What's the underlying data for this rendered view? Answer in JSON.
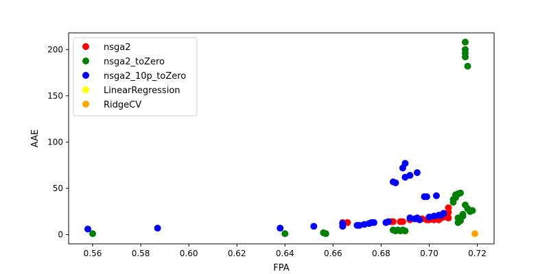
{
  "chart_data": {
    "type": "scatter",
    "xlabel": "FPA",
    "ylabel": "AAE",
    "xlim": [
      0.55,
      0.727
    ],
    "ylim": [
      -10,
      218
    ],
    "x_ticks": [
      "0.56",
      "0.58",
      "0.60",
      "0.62",
      "0.64",
      "0.66",
      "0.68",
      "0.70",
      "0.72"
    ],
    "y_ticks": [
      "0",
      "50",
      "100",
      "150",
      "200"
    ],
    "legend_position": "top-left",
    "grid": false,
    "series": [
      {
        "name": "nsga2",
        "color": "#ff0000",
        "points": [
          [
            0.664,
            13
          ],
          [
            0.666,
            13
          ],
          [
            0.684,
            14
          ],
          [
            0.685,
            14
          ],
          [
            0.688,
            14
          ],
          [
            0.689,
            14
          ],
          [
            0.692,
            16
          ],
          [
            0.695,
            17
          ],
          [
            0.697,
            17
          ],
          [
            0.699,
            16
          ],
          [
            0.7,
            16
          ],
          [
            0.702,
            16
          ],
          [
            0.703,
            17
          ],
          [
            0.704,
            16
          ],
          [
            0.705,
            18
          ],
          [
            0.706,
            19
          ],
          [
            0.707,
            20
          ],
          [
            0.708,
            24
          ],
          [
            0.708,
            18
          ],
          [
            0.708,
            29
          ]
        ]
      },
      {
        "name": "nsga2_toZero",
        "color": "#008000",
        "points": [
          [
            0.56,
            1
          ],
          [
            0.64,
            1
          ],
          [
            0.656,
            2
          ],
          [
            0.657,
            1
          ],
          [
            0.685,
            5
          ],
          [
            0.686,
            4
          ],
          [
            0.687,
            5
          ],
          [
            0.688,
            4
          ],
          [
            0.689,
            5
          ],
          [
            0.69,
            4
          ],
          [
            0.71,
            35
          ],
          [
            0.71,
            38
          ],
          [
            0.711,
            40
          ],
          [
            0.711,
            43
          ],
          [
            0.712,
            44
          ],
          [
            0.712,
            13
          ],
          [
            0.712,
            18
          ],
          [
            0.713,
            15
          ],
          [
            0.713,
            45
          ],
          [
            0.714,
            20
          ],
          [
            0.714,
            22
          ],
          [
            0.715,
            32
          ],
          [
            0.715,
            208
          ],
          [
            0.715,
            200
          ],
          [
            0.715,
            196
          ],
          [
            0.715,
            192
          ],
          [
            0.716,
            182
          ],
          [
            0.716,
            28
          ],
          [
            0.717,
            25
          ],
          [
            0.718,
            26
          ]
        ]
      },
      {
        "name": "nsga2_10p_toZero",
        "color": "#0000ff",
        "points": [
          [
            0.558,
            6
          ],
          [
            0.587,
            7
          ],
          [
            0.638,
            7
          ],
          [
            0.652,
            9
          ],
          [
            0.664,
            9
          ],
          [
            0.664,
            12
          ],
          [
            0.67,
            10
          ],
          [
            0.671,
            10
          ],
          [
            0.673,
            11
          ],
          [
            0.675,
            12
          ],
          [
            0.676,
            13
          ],
          [
            0.677,
            13
          ],
          [
            0.682,
            13
          ],
          [
            0.683,
            14
          ],
          [
            0.685,
            57
          ],
          [
            0.686,
            56
          ],
          [
            0.689,
            72
          ],
          [
            0.69,
            77
          ],
          [
            0.69,
            62
          ],
          [
            0.692,
            64
          ],
          [
            0.692,
            18
          ],
          [
            0.694,
            17
          ],
          [
            0.695,
            67
          ],
          [
            0.695,
            18
          ],
          [
            0.696,
            16
          ],
          [
            0.698,
            41
          ],
          [
            0.699,
            41
          ],
          [
            0.7,
            19
          ],
          [
            0.702,
            20
          ],
          [
            0.703,
            42
          ],
          [
            0.704,
            21
          ],
          [
            0.705,
            21
          ],
          [
            0.706,
            23
          ]
        ]
      },
      {
        "name": "LinearRegression",
        "color": "#ffff00",
        "points": []
      },
      {
        "name": "RidgeCV",
        "color": "#ffa500",
        "points": [
          [
            0.719,
            1
          ]
        ]
      }
    ]
  }
}
